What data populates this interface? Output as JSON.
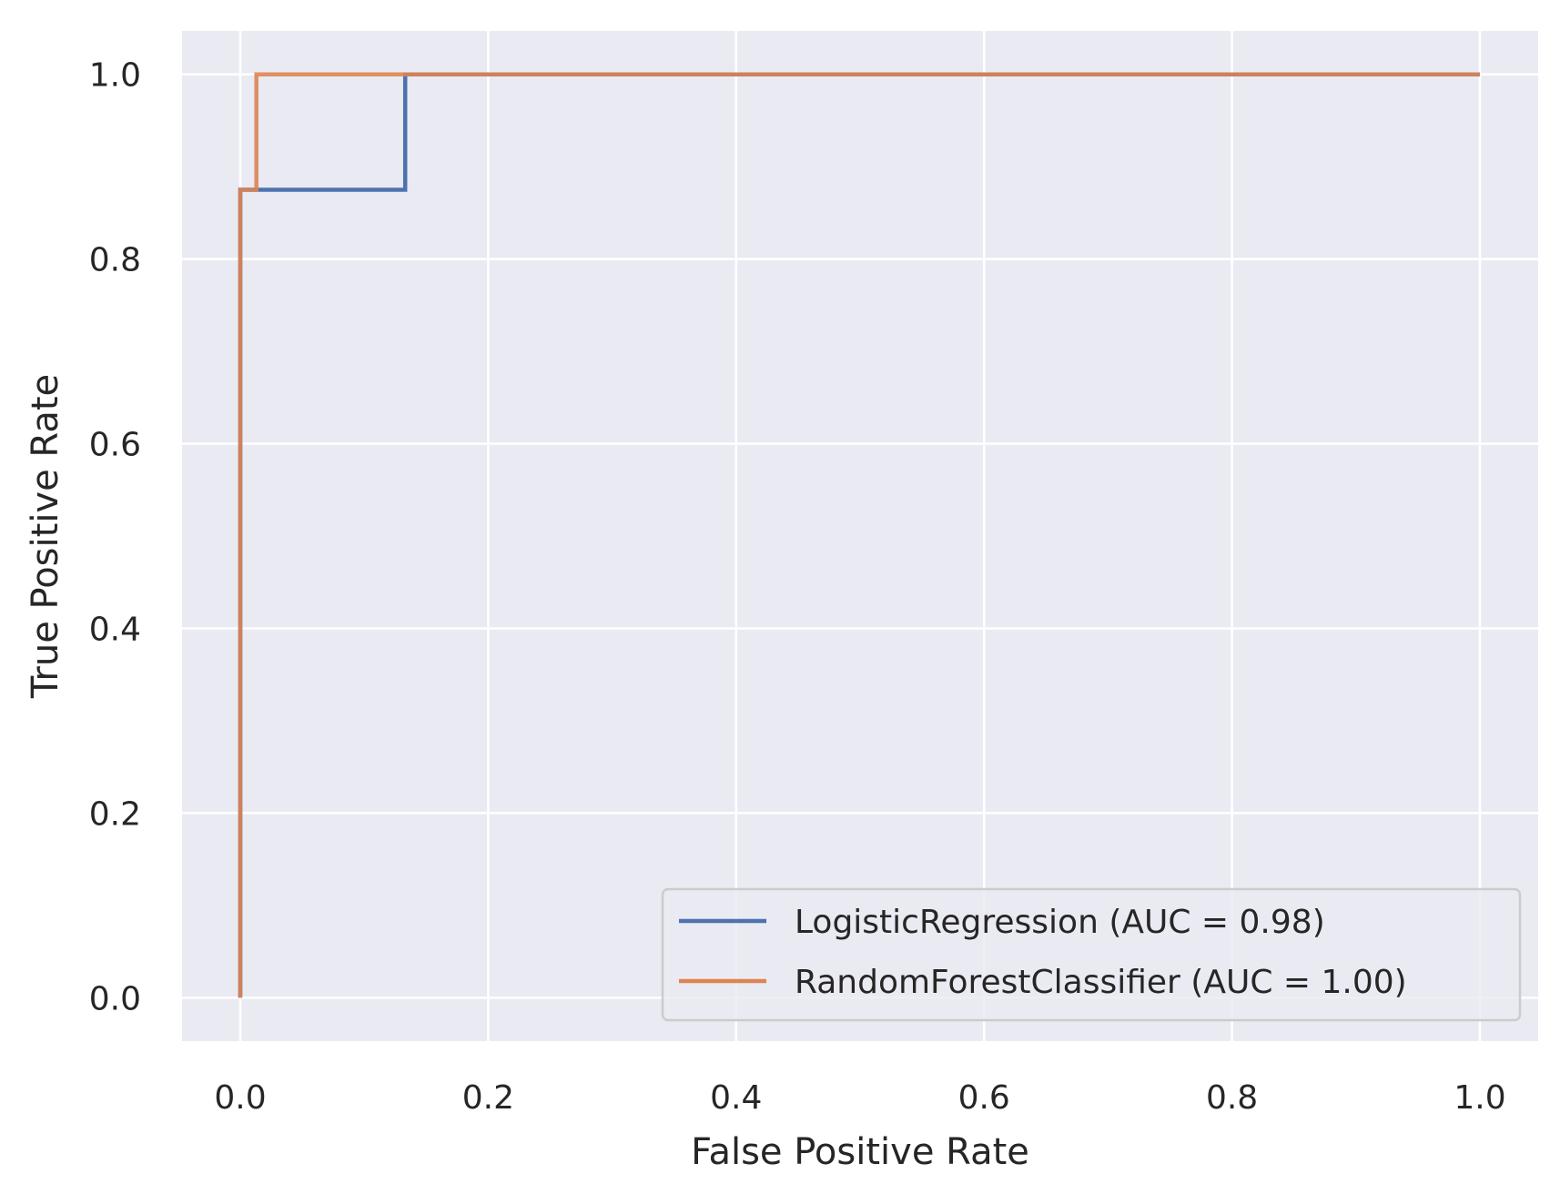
{
  "chart_data": {
    "type": "line",
    "title": "",
    "xlabel": "False Positive Rate",
    "ylabel": "True Positive Rate",
    "xlim": [
      -0.047,
      1.047
    ],
    "ylim": [
      -0.047,
      1.047
    ],
    "xticks": [
      0.0,
      0.2,
      0.4,
      0.6,
      0.8,
      1.0
    ],
    "yticks": [
      0.0,
      0.2,
      0.4,
      0.6,
      0.8,
      1.0
    ],
    "xtick_labels": [
      "0.0",
      "0.2",
      "0.4",
      "0.6",
      "0.8",
      "1.0"
    ],
    "ytick_labels": [
      "0.0",
      "0.2",
      "0.4",
      "0.6",
      "0.8",
      "1.0"
    ],
    "grid": true,
    "background": "#eaeaf2",
    "legend_position": "lower right",
    "series": [
      {
        "name": "LogisticRegression (AUC = 0.98)",
        "color": "#4c72b0",
        "x": [
          0.0,
          0.0,
          0.0,
          0.133,
          0.133,
          1.0
        ],
        "y": [
          0.0,
          0.0,
          0.875,
          0.875,
          1.0,
          1.0
        ]
      },
      {
        "name": "RandomForestClassifier (AUC = 1.00)",
        "color": "#dd8452",
        "x": [
          0.0,
          0.0,
          0.0,
          0.013,
          0.013,
          1.0
        ],
        "y": [
          0.0,
          0.0,
          0.875,
          0.875,
          1.0,
          1.0
        ]
      }
    ]
  }
}
